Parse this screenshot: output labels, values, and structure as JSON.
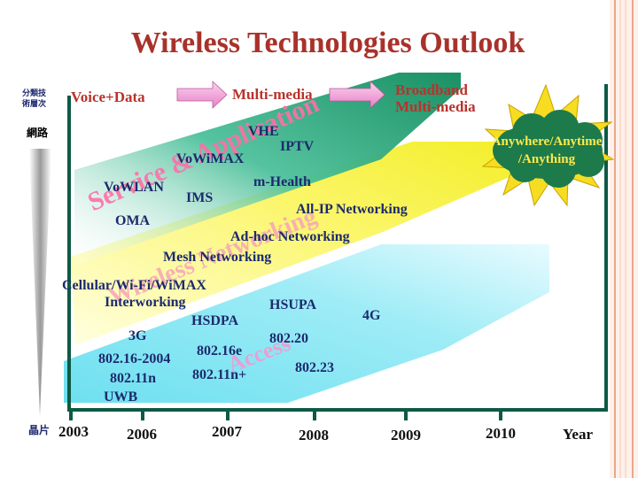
{
  "title": "Wireless Technologies Outlook",
  "left_axis": {
    "top_label_line1": "分類技",
    "top_label_line2": "術層次",
    "network_label": "網路",
    "chip_label": "晶片"
  },
  "phases": {
    "voice_data": "Voice+Data",
    "multimedia": "Multi-media",
    "broadband_line1": "Broadband",
    "broadband_line2": "Multi-media"
  },
  "bands": {
    "service": "Service & Application",
    "networking": "Wireless Networking",
    "access": "Access"
  },
  "cloud": {
    "line1": "Anywhere/Anytime",
    "line2": "/Anything"
  },
  "technologies": {
    "vhe": "VHE",
    "iptv": "IPTV",
    "vowimax": "VoWiMAX",
    "mhealth": "m-Health",
    "vowlan": "VoWLAN",
    "ims": "IMS",
    "oma": "OMA",
    "allip": "All-IP Networking",
    "adhoc": "Ad-hoc Networking",
    "mesh": "Mesh Networking",
    "cellular": "Cellular/Wi-Fi/WiMAX",
    "interworking": "Interworking",
    "hsupa": "HSUPA",
    "hsdpa": "HSDPA",
    "g4": "4G",
    "g3": "3G",
    "n80220": "802.20",
    "n80216e": "802.16e",
    "n802162004": "802.16-2004",
    "n80223": "802.23",
    "n80211n": "802.11n",
    "n80211nplus": "802.11n+",
    "uwb": "UWB"
  },
  "timeline": {
    "years": [
      "2003",
      "2006",
      "2007",
      "2008",
      "2009",
      "2010"
    ],
    "axis_label": "Year"
  },
  "colors": {
    "title": "#a8322b",
    "service_band": "#1a9a6a",
    "networking_band": "#f5f04a",
    "access_band": "#34c8e0",
    "axis": "#0d5a45",
    "cloud": "#1d7a4a",
    "sunburst": "#f5d820"
  }
}
